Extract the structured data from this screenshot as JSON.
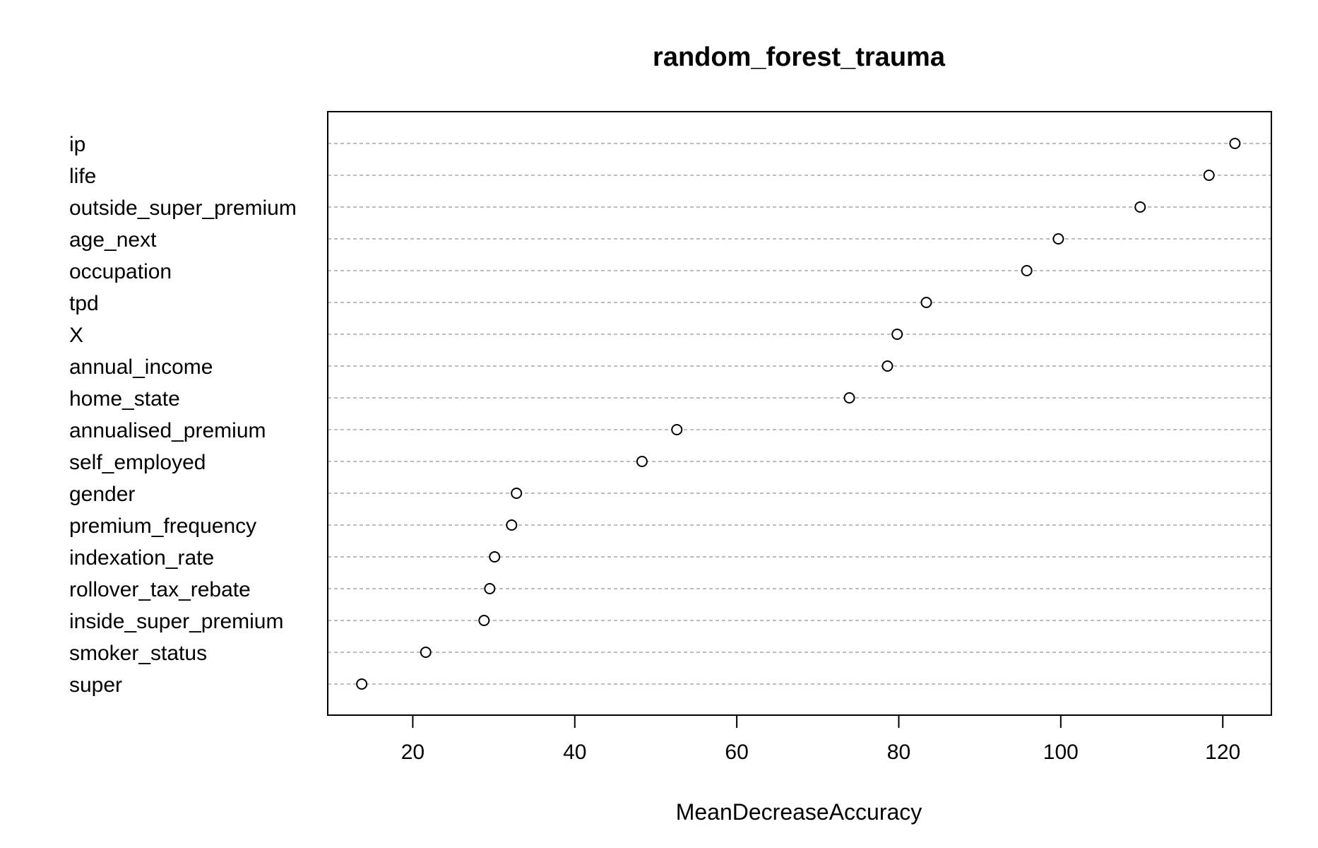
{
  "chart_data": {
    "type": "scatter",
    "title": "random_forest_trauma",
    "xlabel": "MeanDecreaseAccuracy",
    "ylabel": "",
    "xlim": [
      9.5,
      126
    ],
    "xticks": [
      20,
      40,
      60,
      80,
      100,
      120
    ],
    "grid": "horizontal dotted lines per category",
    "series": [
      {
        "categories": [
          "ip",
          "life",
          "outside_super_premium",
          "age_next",
          "occupation",
          "tpd",
          "X",
          "annual_income",
          "home_state",
          "annualised_premium",
          "self_employed",
          "gender",
          "premium_frequency",
          "indexation_rate",
          "rollover_tax_rebate",
          "inside_super_premium",
          "smoker_status",
          "super"
        ],
        "values": [
          121.5,
          118.3,
          109.8,
          99.7,
          95.8,
          83.4,
          79.8,
          78.6,
          73.9,
          52.6,
          48.3,
          32.8,
          32.2,
          30.1,
          29.5,
          28.8,
          21.6,
          13.7
        ]
      }
    ]
  }
}
